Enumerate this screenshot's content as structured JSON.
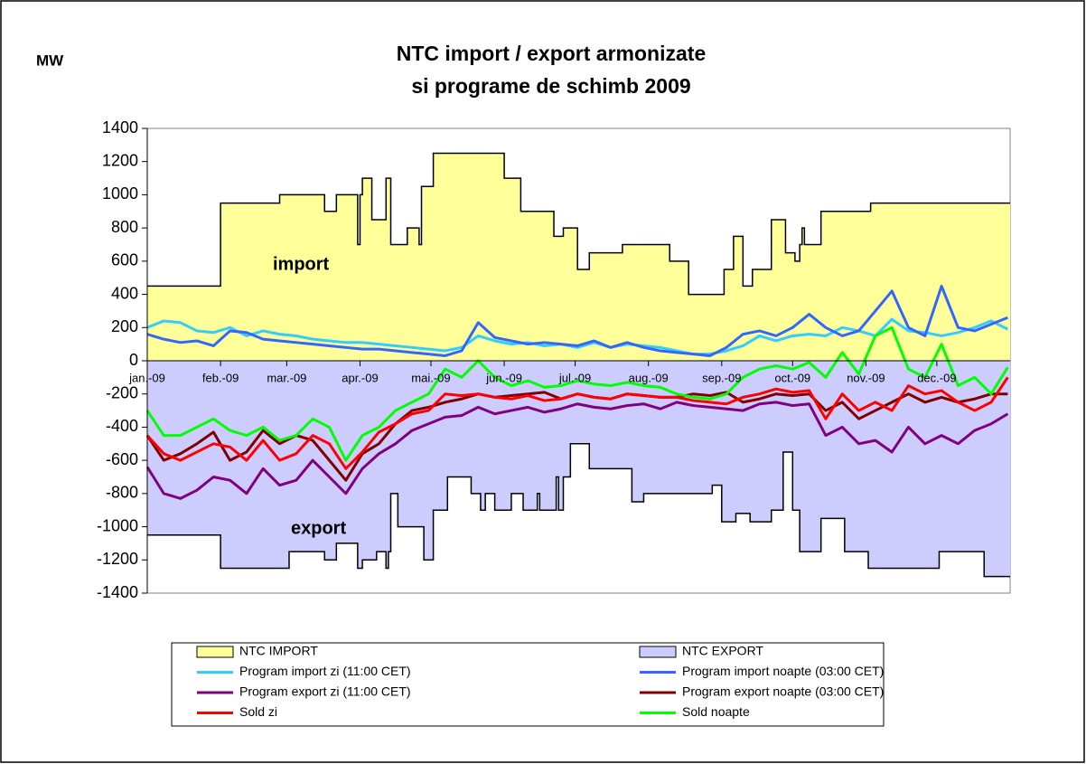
{
  "chart_data": {
    "type": "line",
    "title": [
      "NTC import / export armonizate",
      "si programe de schimb 2009"
    ],
    "y_label": "MW",
    "annotations": [
      "import",
      "export"
    ],
    "xlim": [
      0,
      365
    ],
    "xticks": [
      {
        "value": 0,
        "label": "jan.-09"
      },
      {
        "value": 31,
        "label": "feb.-09"
      },
      {
        "value": 59,
        "label": "mar.-09"
      },
      {
        "value": 90,
        "label": "apr.-09"
      },
      {
        "value": 120,
        "label": "mai.-09"
      },
      {
        "value": 151,
        "label": "jun.-09"
      },
      {
        "value": 181,
        "label": "jul.-09"
      },
      {
        "value": 212,
        "label": "aug.-09"
      },
      {
        "value": 243,
        "label": "sep.-09"
      },
      {
        "value": 273,
        "label": "oct.-09"
      },
      {
        "value": 304,
        "label": "nov.-09"
      },
      {
        "value": 334,
        "label": "dec.-09"
      }
    ],
    "ylim": [
      -1400,
      1400
    ],
    "yticks": [
      -1400,
      -1200,
      -1000,
      -800,
      -600,
      -400,
      -200,
      0,
      200,
      400,
      600,
      800,
      1000,
      1200,
      1400
    ],
    "x": [
      0,
      7,
      14,
      21,
      28,
      35,
      42,
      49,
      56,
      63,
      70,
      77,
      84,
      91,
      98,
      105,
      112,
      119,
      126,
      133,
      140,
      147,
      154,
      161,
      168,
      175,
      182,
      189,
      196,
      203,
      210,
      217,
      224,
      231,
      238,
      245,
      252,
      259,
      266,
      273,
      280,
      287,
      294,
      301,
      308,
      315,
      322,
      329,
      336,
      343,
      350,
      357,
      364
    ],
    "series": [
      {
        "name": "NTC IMPORT",
        "type": "area",
        "color": "#ffff99",
        "x": [
          0,
          31,
          56,
          75,
          80,
          89,
          90,
          91,
          95,
          101,
          103,
          110,
          115,
          116,
          121,
          151,
          158,
          172,
          176,
          182,
          187,
          201,
          221,
          229,
          244,
          248,
          252,
          256,
          264,
          270,
          274,
          276,
          277,
          278,
          282,
          285,
          306,
          365
        ],
        "values": [
          450,
          950,
          1000,
          900,
          1000,
          700,
          1000,
          1100,
          850,
          1100,
          700,
          800,
          700,
          1050,
          1250,
          1100,
          900,
          750,
          800,
          550,
          650,
          700,
          600,
          400,
          550,
          750,
          450,
          550,
          850,
          650,
          600,
          700,
          800,
          700,
          700,
          900,
          950,
          950
        ]
      },
      {
        "name": "NTC EXPORT",
        "type": "area",
        "color": "#ccccff",
        "x": [
          0,
          31,
          60,
          75,
          80,
          89,
          91,
          97,
          101,
          102,
          103,
          106,
          115,
          117,
          121,
          127,
          137,
          141,
          143,
          147,
          154,
          159,
          165,
          166,
          171,
          173,
          174,
          176,
          179,
          187,
          205,
          210,
          239,
          243,
          249,
          255,
          264,
          269,
          273,
          276,
          285,
          295,
          305,
          335,
          354,
          365
        ],
        "values": [
          -1050,
          -1250,
          -1150,
          -1200,
          -1100,
          -1250,
          -1200,
          -1150,
          -1250,
          -1150,
          -800,
          -1000,
          -1000,
          -1200,
          -900,
          -700,
          -800,
          -900,
          -800,
          -900,
          -800,
          -900,
          -800,
          -900,
          -900,
          -700,
          -900,
          -700,
          -500,
          -650,
          -850,
          -800,
          -750,
          -970,
          -920,
          -970,
          -900,
          -550,
          -900,
          -1150,
          -950,
          -1150,
          -1250,
          -1150,
          -1300,
          -1300
        ]
      },
      {
        "name": "Program import zi (11:00 CET)",
        "color": "#33ccff",
        "values": [
          200,
          240,
          230,
          180,
          170,
          200,
          150,
          180,
          160,
          150,
          130,
          120,
          110,
          110,
          100,
          90,
          80,
          70,
          60,
          80,
          150,
          120,
          100,
          110,
          90,
          100,
          80,
          110,
          80,
          100,
          90,
          80,
          60,
          40,
          40,
          60,
          90,
          150,
          120,
          150,
          160,
          150,
          200,
          180,
          150,
          250,
          180,
          170,
          150,
          170,
          200,
          240,
          190
        ]
      },
      {
        "name": "Program import noapte (03:00 CET)",
        "color": "#3366ff",
        "values": [
          160,
          130,
          110,
          120,
          90,
          180,
          170,
          130,
          120,
          110,
          100,
          90,
          80,
          70,
          70,
          60,
          50,
          40,
          30,
          60,
          230,
          140,
          120,
          100,
          110,
          100,
          90,
          120,
          80,
          110,
          80,
          60,
          50,
          40,
          30,
          80,
          160,
          180,
          150,
          200,
          280,
          200,
          150,
          180,
          300,
          420,
          200,
          150,
          450,
          200,
          180,
          220,
          260
        ]
      },
      {
        "name": "Program export zi (11:00 CET)",
        "color": "#800080",
        "values": [
          -640,
          -800,
          -830,
          -780,
          -700,
          -720,
          -800,
          -650,
          -750,
          -720,
          -600,
          -700,
          -800,
          -650,
          -560,
          -500,
          -420,
          -380,
          -340,
          -330,
          -280,
          -320,
          -300,
          -280,
          -310,
          -290,
          -260,
          -280,
          -290,
          -270,
          -260,
          -290,
          -250,
          -270,
          -280,
          -290,
          -300,
          -260,
          -250,
          -270,
          -260,
          -450,
          -400,
          -500,
          -480,
          -550,
          -400,
          -500,
          -450,
          -500,
          -420,
          -380,
          -320
        ]
      },
      {
        "name": "Program export noapte (03:00 CET)",
        "color": "#800000",
        "values": [
          -450,
          -600,
          -560,
          -500,
          -430,
          -600,
          -550,
          -420,
          -500,
          -450,
          -480,
          -600,
          -720,
          -560,
          -500,
          -380,
          -300,
          -280,
          -250,
          -230,
          -200,
          -220,
          -210,
          -200,
          -190,
          -230,
          -200,
          -220,
          -230,
          -200,
          -210,
          -220,
          -220,
          -200,
          -210,
          -190,
          -250,
          -230,
          -200,
          -210,
          -200,
          -300,
          -250,
          -350,
          -300,
          -250,
          -200,
          -250,
          -220,
          -250,
          -230,
          -200,
          -200
        ]
      },
      {
        "name": "Sold zi",
        "color": "#ff0000",
        "values": [
          -450,
          -560,
          -600,
          -550,
          -500,
          -520,
          -600,
          -480,
          -600,
          -560,
          -450,
          -500,
          -650,
          -550,
          -430,
          -380,
          -320,
          -300,
          -200,
          -210,
          -200,
          -220,
          -230,
          -210,
          -240,
          -230,
          -200,
          -220,
          -230,
          -200,
          -210,
          -220,
          -220,
          -240,
          -250,
          -260,
          -220,
          -200,
          -170,
          -190,
          -180,
          -350,
          -200,
          -300,
          -250,
          -300,
          -150,
          -200,
          -180,
          -250,
          -300,
          -250,
          -100
        ]
      },
      {
        "name": "Sold noapte",
        "color": "#00ff00",
        "values": [
          -300,
          -450,
          -450,
          -400,
          -350,
          -420,
          -450,
          -400,
          -480,
          -450,
          -350,
          -400,
          -600,
          -450,
          -400,
          -300,
          -250,
          -200,
          -50,
          -100,
          0,
          -100,
          -150,
          -120,
          -160,
          -150,
          -120,
          -140,
          -150,
          -130,
          -150,
          -160,
          -200,
          -220,
          -230,
          -200,
          -100,
          -50,
          -30,
          -50,
          -10,
          -100,
          50,
          -80,
          150,
          200,
          -50,
          -100,
          100,
          -150,
          -100,
          -200,
          -40
        ]
      }
    ]
  }
}
